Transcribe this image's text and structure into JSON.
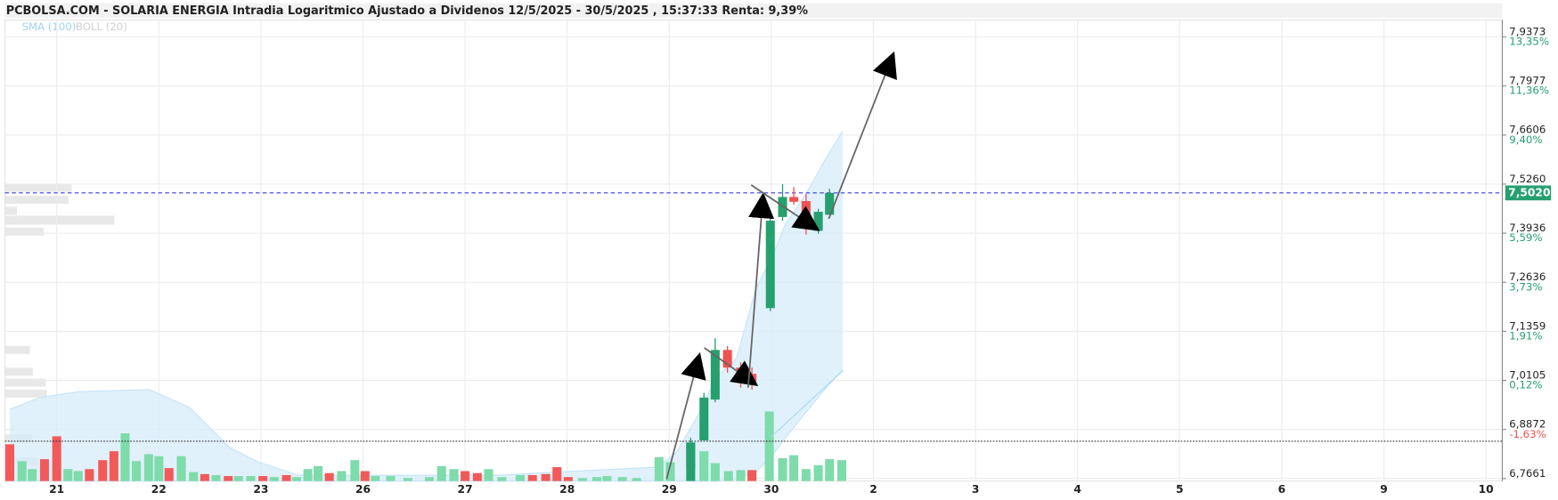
{
  "chart_data": {
    "type": "candlestick",
    "title": "PCBOLSA.COM - SOLARIA ENERGIA Intradia Logaritmico Ajustado a Dividenos 12/5/2025 - 30/5/2025 , 15:37:33 Renta: 9,39%",
    "log_y": true,
    "grid": true,
    "xlim": [
      -0.507,
      14.16
    ],
    "xticks": [
      {
        "value": 0,
        "label": "21"
      },
      {
        "value": 1,
        "label": "22"
      },
      {
        "value": 2,
        "label": "23"
      },
      {
        "value": 3,
        "label": "26"
      },
      {
        "value": 4,
        "label": "27"
      },
      {
        "value": 5,
        "label": "28"
      },
      {
        "value": 6,
        "label": "29"
      },
      {
        "value": 7,
        "label": "30"
      },
      {
        "value": 8,
        "label": "2"
      },
      {
        "value": 9,
        "label": "3"
      },
      {
        "value": 10,
        "label": "4"
      },
      {
        "value": 11,
        "label": "5"
      },
      {
        "value": 12,
        "label": "6"
      },
      {
        "value": 13,
        "label": "9"
      },
      {
        "value": 14,
        "label": "10"
      }
    ],
    "ylim": [
      6.76,
      7.986
    ],
    "yticks": [
      {
        "value": 6.7661,
        "label": "6,7661"
      },
      {
        "value": 6.8872,
        "label": "6,8872"
      },
      {
        "value": 7.0105,
        "label": "7,0105"
      },
      {
        "value": 7.1359,
        "label": "7,1359"
      },
      {
        "value": 7.2636,
        "label": "7,2636"
      },
      {
        "value": 7.3936,
        "label": "7,3936"
      },
      {
        "value": 7.526,
        "label": "7,5260"
      },
      {
        "value": 7.6606,
        "label": "7,6606"
      },
      {
        "value": 7.7977,
        "label": "7,7977"
      },
      {
        "value": 7.9373,
        "label": "7,9373"
      }
    ],
    "ytick_returns": [
      null,
      {
        "value": -1.63,
        "label": "-1,63%"
      },
      {
        "value": 0.12,
        "label": "0,12%"
      },
      {
        "value": 1.91,
        "label": "1,91%"
      },
      {
        "value": 3.73,
        "label": "3,73%"
      },
      {
        "value": 5.59,
        "label": "5,59%"
      },
      null,
      {
        "value": 9.4,
        "label": "9,40%"
      },
      {
        "value": 11.36,
        "label": "11,36%"
      },
      {
        "value": 13.35,
        "label": "13,35%"
      }
    ],
    "last_price": {
      "value": 7.502,
      "label": "7,5020"
    },
    "ref_price": 6.858,
    "up_color": "#26a06e",
    "down_color": "#f05252",
    "candles": {
      "x": [
        6.21,
        6.34,
        6.45,
        6.57,
        6.7,
        6.81,
        6.99,
        7.11,
        7.22,
        7.34,
        7.46,
        7.57
      ],
      "open": [
        6.789,
        6.86,
        6.962,
        7.088,
        7.043,
        7.027,
        7.196,
        7.437,
        7.491,
        7.48,
        7.4,
        7.443
      ],
      "high": [
        6.867,
        6.979,
        7.118,
        7.098,
        7.056,
        7.043,
        7.432,
        7.526,
        7.518,
        7.499,
        7.459,
        7.513
      ],
      "low": [
        6.774,
        6.86,
        6.955,
        7.03,
        6.992,
        6.987,
        7.188,
        7.427,
        7.47,
        7.39,
        7.392,
        7.443
      ],
      "close": [
        6.855,
        6.967,
        7.088,
        7.043,
        7.01,
        7.005,
        7.427,
        7.491,
        7.478,
        7.419,
        7.451,
        7.502
      ]
    },
    "volume": {
      "lim": [
        0,
        100
      ],
      "x": [
        -0.46,
        -0.34,
        -0.24,
        -0.12,
        0,
        0.11,
        0.21,
        0.32,
        0.45,
        0.56,
        0.67,
        0.78,
        0.9,
        1.0,
        1.1,
        1.22,
        1.34,
        1.45,
        1.56,
        1.68,
        1.78,
        1.9,
        2.02,
        2.13,
        2.25,
        2.35,
        2.46,
        2.56,
        2.67,
        2.79,
        2.92,
        3.02,
        3.12,
        3.27,
        3.44,
        3.65,
        3.77,
        3.89,
        4.0,
        4.12,
        4.23,
        4.36,
        4.54,
        4.66,
        4.79,
        4.9,
        5.01,
        5.15,
        5.29,
        5.39,
        5.54,
        5.68,
        5.9,
        6.01,
        6.21,
        6.34,
        6.45,
        6.58,
        6.7,
        6.81,
        6.98,
        7.11,
        7.22,
        7.34,
        7.46,
        7.57,
        7.69
      ],
      "values": [
        37,
        20,
        12,
        22,
        45,
        12,
        10,
        12,
        21,
        30,
        48,
        20,
        27,
        25,
        13,
        25,
        9,
        7,
        6,
        5,
        5,
        5,
        5,
        4,
        6,
        4,
        12,
        15,
        8,
        10,
        21,
        10,
        5,
        5,
        3,
        4,
        15,
        12,
        10,
        8,
        12,
        4,
        6,
        6,
        7,
        14,
        4,
        3,
        4,
        5,
        4,
        3,
        24,
        19,
        38,
        30,
        18,
        10,
        11,
        11,
        70,
        23,
        26,
        12,
        16,
        22,
        21
      ],
      "colors": [
        "#f25a5a",
        "#7edbaa",
        "#7edbaa",
        "#f25a5a",
        "#f25a5a",
        "#7edbaa",
        "#7edbaa",
        "#f25a5a",
        "#f25a5a",
        "#f25a5a",
        "#7edbaa",
        "#7edbaa",
        "#7edbaa",
        "#7edbaa",
        "#f25a5a",
        "#7edbaa",
        "#7edbaa",
        "#f25a5a",
        "#7edbaa",
        "#f25a5a",
        "#7edbaa",
        "#7edbaa",
        "#f25a5a",
        "#7edbaa",
        "#f25a5a",
        "#7edbaa",
        "#7edbaa",
        "#7edbaa",
        "#f25a5a",
        "#7edbaa",
        "#7edbaa",
        "#f25a5a",
        "#7edbaa",
        "#7edbaa",
        "#7edbaa",
        "#7edbaa",
        "#7edbaa",
        "#7edbaa",
        "#f25a5a",
        "#f25a5a",
        "#7edbaa",
        "#7edbaa",
        "#7edbaa",
        "#f25a5a",
        "#f25a5a",
        "#f25a5a",
        "#f25a5a",
        "#7edbaa",
        "#7edbaa",
        "#7edbaa",
        "#7edbaa",
        "#7edbaa",
        "#7edbaa",
        "#7edbaa",
        "#26a06e",
        "#7edbaa",
        "#7edbaa",
        "#7edbaa",
        "#7edbaa",
        "#f25a5a",
        "#7edbaa",
        "#7edbaa",
        "#7edbaa",
        "#7edbaa",
        "#7edbaa",
        "#7edbaa",
        "#7edbaa"
      ]
    },
    "bands": {
      "name": "BOLL (20)",
      "color": "#d6ecfa",
      "x": [
        -0.46,
        -0.17,
        0.22,
        0.91,
        1.3,
        1.69,
        1.98,
        2.37,
        4.32,
        4.9,
        5.88,
        6.07,
        6.27,
        6.46,
        6.66,
        6.85,
        7.0,
        7.14,
        7.34,
        7.53,
        7.7
      ],
      "upper": [
        6.937,
        6.967,
        6.982,
        6.987,
        6.942,
        6.843,
        6.806,
        6.774,
        6.774,
        6.782,
        6.794,
        6.83,
        6.917,
        7.017,
        7.067,
        7.248,
        7.326,
        7.419,
        7.499,
        7.594,
        7.672
      ],
      "lower": [
        6.76,
        6.76,
        6.76,
        6.76,
        6.76,
        6.76,
        6.76,
        6.76,
        6.76,
        6.76,
        6.76,
        6.76,
        6.76,
        6.76,
        6.764,
        6.782,
        6.82,
        6.867,
        6.93,
        6.99,
        7.037
      ]
    },
    "sma": {
      "name": "SMA (100)",
      "color": "#a8d8f5",
      "x": [
        6.99,
        7.7
      ],
      "values": [
        6.867,
        7.035
      ]
    }
  }
}
